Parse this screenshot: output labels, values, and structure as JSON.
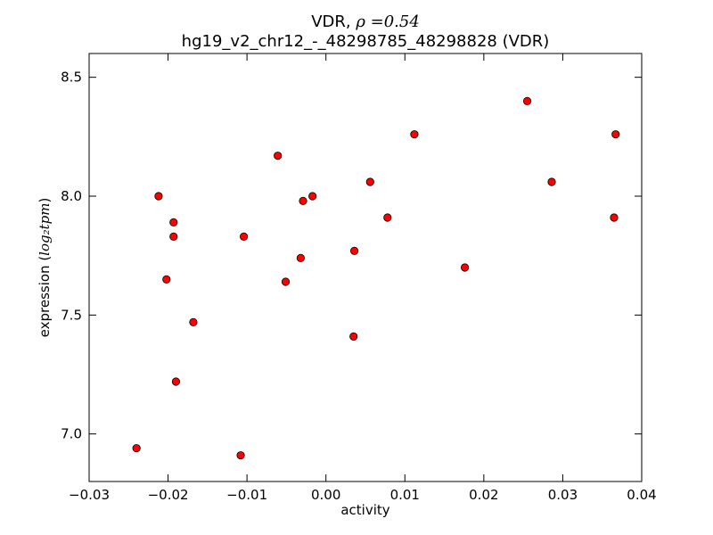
{
  "chart_data": {
    "type": "scatter",
    "title_prefix": "VDR, ",
    "title_math": "ρ =0.54",
    "subtitle": "hg19_v2_chr12_-_48298785_48298828 (VDR)",
    "xlabel": "activity",
    "ylabel_prefix": "expression (",
    "ylabel_math": "log₂tpm",
    "ylabel_suffix": ")",
    "xlim": [
      -0.03,
      0.04
    ],
    "ylim": [
      6.8,
      8.6
    ],
    "xticks": [
      -0.03,
      -0.02,
      -0.01,
      0.0,
      0.01,
      0.02,
      0.03,
      0.04
    ],
    "xtick_labels": [
      "−0.03",
      "−0.02",
      "−0.01",
      "0.00",
      "0.01",
      "0.02",
      "0.03",
      "0.04"
    ],
    "yticks": [
      7.0,
      7.5,
      8.0,
      8.5
    ],
    "ytick_labels": [
      "7.0",
      "7.5",
      "8.0",
      "8.5"
    ],
    "grid": false,
    "marker_color": "#ff0000",
    "marker_edge_color": "#000000",
    "points": [
      {
        "x": -0.024,
        "y": 6.94
      },
      {
        "x": -0.0212,
        "y": 8.0
      },
      {
        "x": -0.0202,
        "y": 7.65
      },
      {
        "x": -0.0193,
        "y": 7.89
      },
      {
        "x": -0.0193,
        "y": 7.83
      },
      {
        "x": -0.019,
        "y": 7.22
      },
      {
        "x": -0.0168,
        "y": 7.47
      },
      {
        "x": -0.0108,
        "y": 6.91
      },
      {
        "x": -0.0104,
        "y": 7.83
      },
      {
        "x": -0.0061,
        "y": 8.17
      },
      {
        "x": -0.0051,
        "y": 7.64
      },
      {
        "x": -0.0032,
        "y": 7.74
      },
      {
        "x": -0.0029,
        "y": 7.98
      },
      {
        "x": -0.0017,
        "y": 8.0
      },
      {
        "x": 0.0035,
        "y": 7.41
      },
      {
        "x": 0.0036,
        "y": 7.77
      },
      {
        "x": 0.0056,
        "y": 8.06
      },
      {
        "x": 0.0078,
        "y": 7.91
      },
      {
        "x": 0.0112,
        "y": 8.26
      },
      {
        "x": 0.0176,
        "y": 7.7
      },
      {
        "x": 0.0255,
        "y": 8.4
      },
      {
        "x": 0.0286,
        "y": 8.06
      },
      {
        "x": 0.0365,
        "y": 7.91
      },
      {
        "x": 0.0367,
        "y": 8.26
      }
    ]
  }
}
